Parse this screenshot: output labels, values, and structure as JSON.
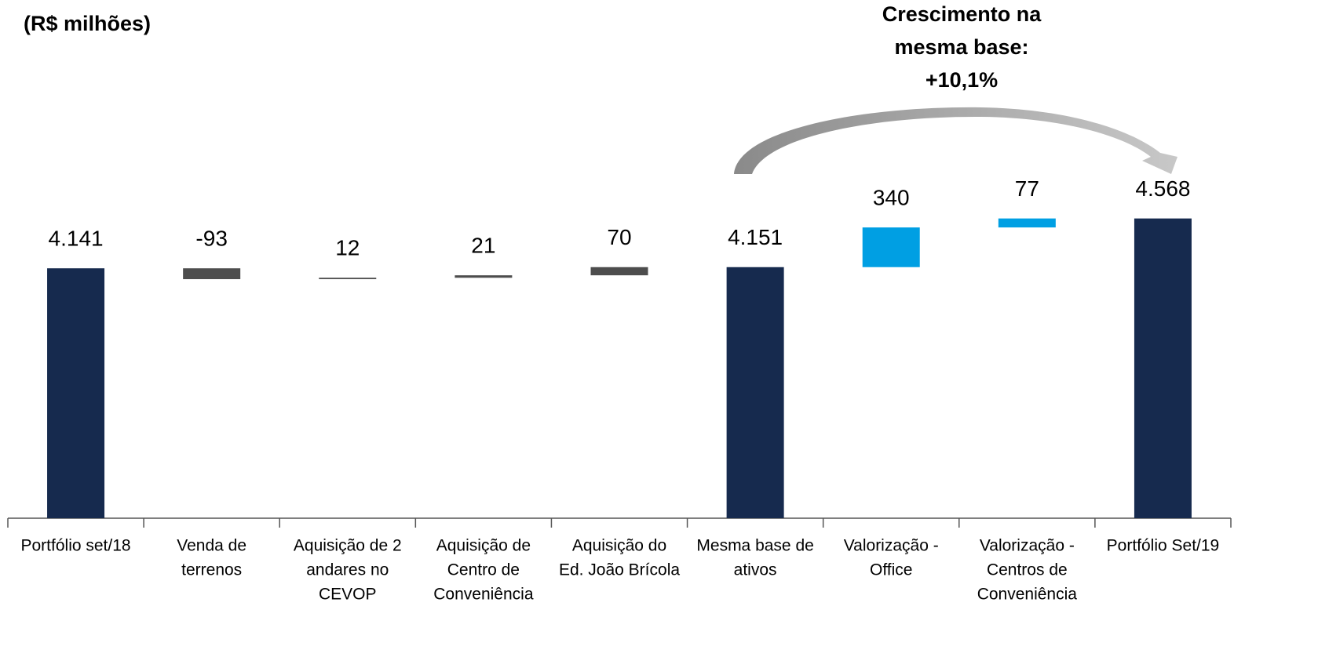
{
  "chart_data": {
    "type": "waterfall",
    "title": "(R$ milhões)",
    "annotation": [
      "Crescimento na",
      "mesma base:",
      "+10,1%"
    ],
    "categories": [
      [
        "Portfólio set/18"
      ],
      [
        "Venda de",
        "terrenos"
      ],
      [
        "Aquisição de 2",
        "andares no",
        "CEVOP"
      ],
      [
        "Aquisição de",
        "Centro de",
        "Conveniência"
      ],
      [
        "Aquisição do",
        "Ed. João Brícola"
      ],
      [
        "Mesma base de",
        "ativos"
      ],
      [
        "Valorização -",
        "Office"
      ],
      [
        "Valorização -",
        "Centros de",
        "Conveniência"
      ],
      [
        "Portfólio Set/19"
      ]
    ],
    "values": [
      4141,
      -93,
      12,
      21,
      70,
      4151,
      340,
      77,
      4568
    ],
    "value_labels": [
      "4.141",
      "-93",
      "12",
      "21",
      "70",
      "4.151",
      "340",
      "77",
      "4.568"
    ],
    "measure": [
      "absolute",
      "relative",
      "relative",
      "relative",
      "relative",
      "absolute",
      "relative",
      "relative",
      "absolute"
    ],
    "colors": [
      "#162a4e",
      "#4d4d4d",
      "#4d4d4d",
      "#4d4d4d",
      "#4d4d4d",
      "#162a4e",
      "#009fe3",
      "#009fe3",
      "#162a4e"
    ],
    "ylim": [
      2000,
      4700
    ]
  }
}
